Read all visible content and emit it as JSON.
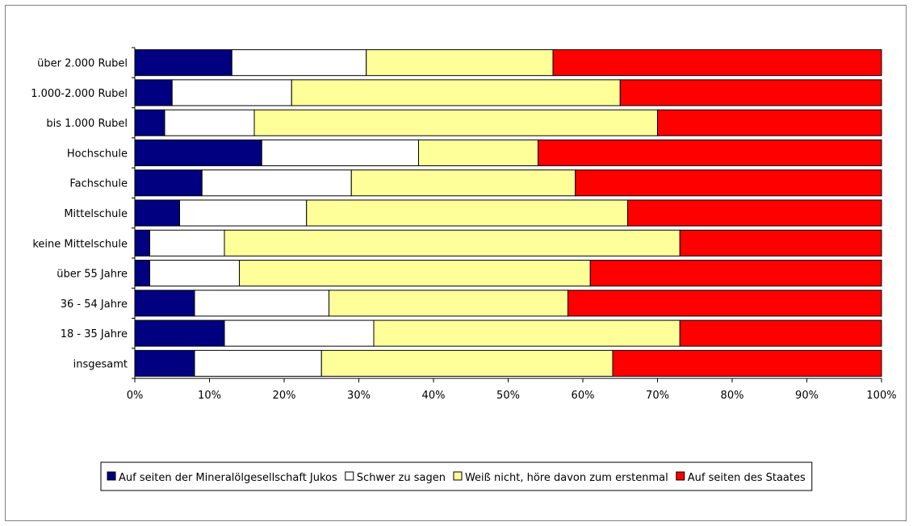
{
  "chart_data": {
    "type": "bar",
    "orientation": "horizontal",
    "stacked": true,
    "percent": true,
    "title": "",
    "xlabel": "",
    "ylabel": "",
    "xlim": [
      0,
      100
    ],
    "xticks": [
      "0%",
      "10%",
      "20%",
      "30%",
      "40%",
      "50%",
      "60%",
      "70%",
      "80%",
      "90%",
      "100%"
    ],
    "legend_position": "bottom",
    "grid": false,
    "categories": [
      "über 2.000 Rubel",
      "1.000-2.000 Rubel",
      "bis 1.000 Rubel",
      "Hochschule",
      "Fachschule",
      "Mittelschule",
      "keine Mittelschule",
      "über 55 Jahre",
      "36 - 54 Jahre",
      "18 - 35 Jahre",
      "insgesamt"
    ],
    "series": [
      {
        "name": "Auf seiten der Mineralölgesellschaft Jukos",
        "color": "#000080",
        "values": [
          13,
          5,
          4,
          17,
          9,
          6,
          2,
          2,
          8,
          12,
          8
        ]
      },
      {
        "name": "Schwer zu sagen",
        "color": "#ffffff",
        "values": [
          18,
          16,
          12,
          21,
          20,
          17,
          10,
          12,
          18,
          20,
          17
        ]
      },
      {
        "name": "Weiß nicht, höre davon zum erstenmal",
        "color": "#ffff99",
        "values": [
          25,
          44,
          54,
          16,
          30,
          43,
          61,
          47,
          32,
          41,
          39
        ]
      },
      {
        "name": "Auf seiten des Staates",
        "color": "#ff0000",
        "values": [
          44,
          35,
          30,
          46,
          41,
          34,
          27,
          39,
          42,
          27,
          36
        ]
      }
    ]
  }
}
